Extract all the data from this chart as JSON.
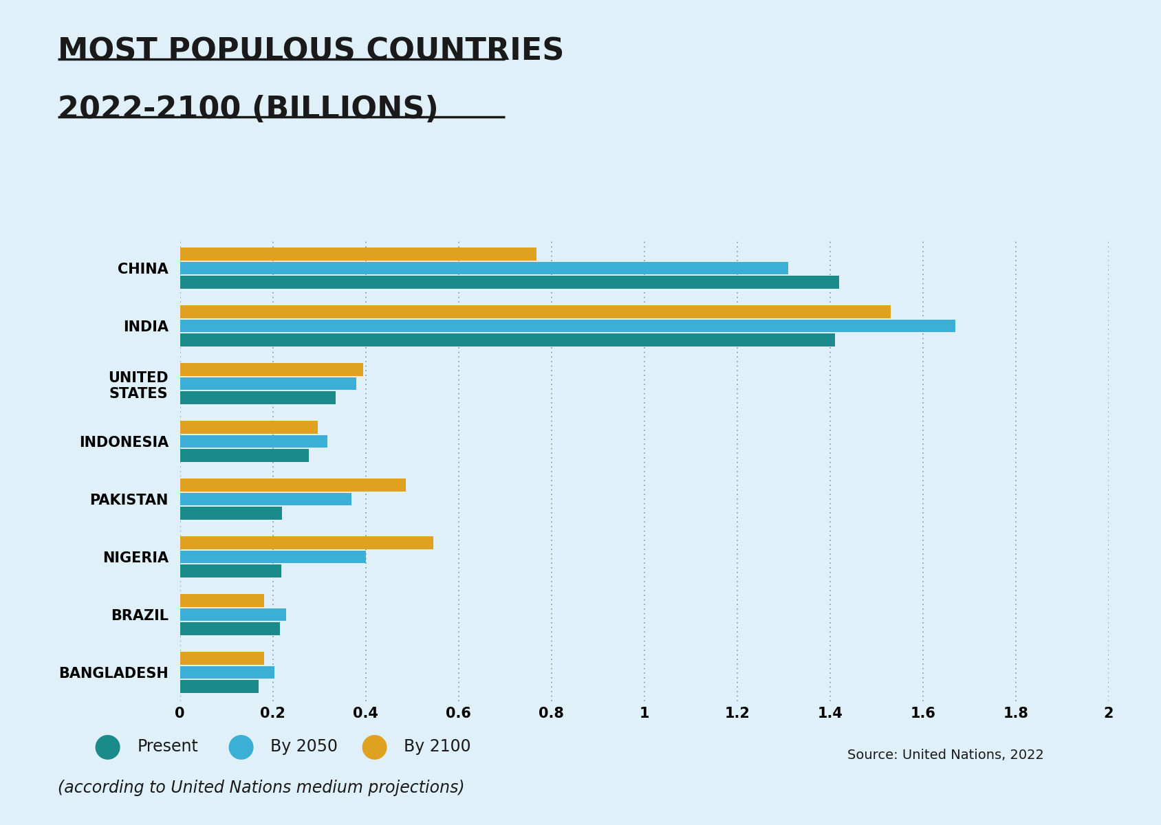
{
  "title_line1": "MOST POPULOUS COUNTRIES",
  "title_line2": "2022-2100 (BILLIONS)",
  "categories": [
    "CHINA",
    "INDIA",
    "UNITED\nSTATES",
    "INDONESIA",
    "PAKISTAN",
    "NIGERIA",
    "BRAZIL",
    "BANGLADESH"
  ],
  "present": [
    1.42,
    1.41,
    0.335,
    0.277,
    0.22,
    0.218,
    0.215,
    0.169
  ],
  "by2050": [
    1.31,
    1.67,
    0.38,
    0.317,
    0.37,
    0.401,
    0.228,
    0.204
  ],
  "by2100": [
    0.767,
    1.53,
    0.394,
    0.297,
    0.487,
    0.546,
    0.181,
    0.181
  ],
  "color_present": "#1a8a8a",
  "color_2050": "#3bafd6",
  "color_2100": "#e0a020",
  "background_color": "#dff0f8",
  "title_color": "#1a1a1a",
  "xlim": [
    0,
    2.0
  ],
  "xticks": [
    0,
    0.2,
    0.4,
    0.6,
    0.8,
    1.0,
    1.2,
    1.4,
    1.6,
    1.8,
    2.0
  ],
  "xtick_labels": [
    "0",
    "0.2",
    "0.4",
    "0.6",
    "0.8",
    "1",
    "1.2",
    "1.4",
    "1.6",
    "1.8",
    "2"
  ],
  "legend_labels": [
    "Present",
    "By 2050",
    "By 2100"
  ],
  "source_text": "Source: United Nations, 2022",
  "sub_text": "(according to United Nations medium projections)"
}
